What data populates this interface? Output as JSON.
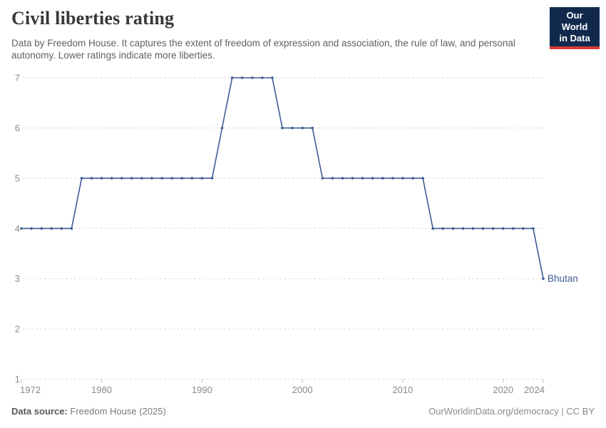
{
  "header": {
    "title": "Civil liberties rating",
    "subtitle": "Data by Freedom House. It captures the extent of freedom of expression and association, the rule of law, and personal autonomy. Lower ratings indicate more liberties.",
    "logo": {
      "line1": "Our World",
      "line2": "in Data",
      "bg_color": "#12294e",
      "accent_color": "#d53d36"
    }
  },
  "footer": {
    "source_label": "Data source:",
    "source_value": "Freedom House (2025)",
    "right_text": "OurWorldinData.org/democracy | CC BY"
  },
  "chart_data": {
    "type": "line",
    "title": "Civil liberties rating",
    "entity": "Bhutan",
    "xlabel": "",
    "ylabel": "",
    "xlim": [
      1972,
      2024
    ],
    "ylim": [
      1,
      7
    ],
    "x_ticks": [
      1972,
      1980,
      1990,
      2000,
      2010,
      2020,
      2024
    ],
    "y_ticks": [
      1,
      2,
      3,
      4,
      5,
      6,
      7
    ],
    "grid": "horizontal-dashed",
    "legend_position": "end-of-line-label",
    "line_color": "#3d5c96",
    "axis_color": "#8a8a8a",
    "grid_color": "#dcdcdc",
    "tick_color": "#c4c4c4",
    "x": [
      1972,
      1973,
      1974,
      1975,
      1976,
      1977,
      1978,
      1979,
      1980,
      1981,
      1982,
      1983,
      1984,
      1985,
      1986,
      1987,
      1988,
      1989,
      1990,
      1991,
      1992,
      1993,
      1994,
      1995,
      1996,
      1997,
      1998,
      1999,
      2000,
      2001,
      2002,
      2003,
      2004,
      2005,
      2006,
      2007,
      2008,
      2009,
      2010,
      2011,
      2012,
      2013,
      2014,
      2015,
      2016,
      2017,
      2018,
      2019,
      2020,
      2021,
      2022,
      2023,
      2024
    ],
    "values": [
      4,
      4,
      4,
      4,
      4,
      4,
      5,
      5,
      5,
      5,
      5,
      5,
      5,
      5,
      5,
      5,
      5,
      5,
      5,
      5,
      6,
      7,
      7,
      7,
      7,
      7,
      6,
      6,
      6,
      6,
      5,
      5,
      5,
      5,
      5,
      5,
      5,
      5,
      5,
      5,
      5,
      4,
      4,
      4,
      4,
      4,
      4,
      4,
      4,
      4,
      4,
      4,
      3
    ]
  }
}
